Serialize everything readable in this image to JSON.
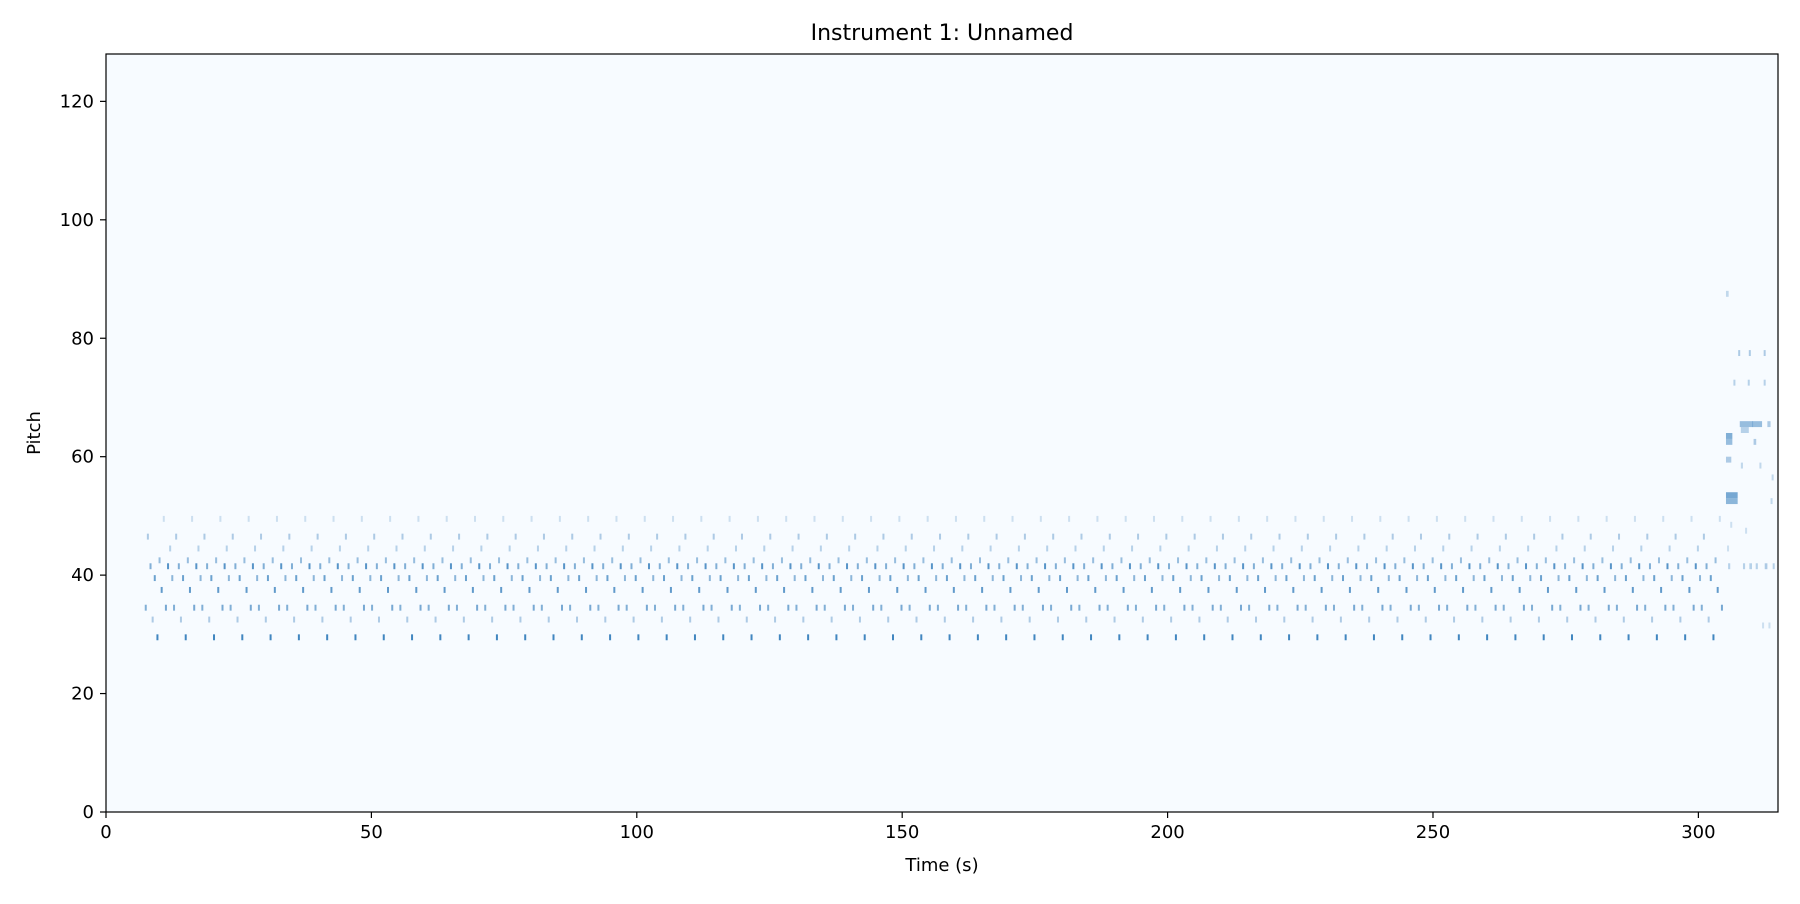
{
  "chart_data": {
    "type": "heatmap",
    "title": "Instrument 1: Unnamed",
    "xlabel": "Time (s)",
    "ylabel": "Pitch",
    "xlim": [
      0,
      315
    ],
    "ylim": [
      0,
      128
    ],
    "xticks": [
      0,
      50,
      100,
      150,
      200,
      250,
      300
    ],
    "yticks": [
      0,
      20,
      40,
      60,
      80,
      100,
      120
    ],
    "grid": false,
    "colormap": "Blues",
    "background_color": "#f7fbff",
    "note_color": "#2171b5",
    "loop_pattern": {
      "start_time": 7.3,
      "period": 5.33,
      "repetitions": 56,
      "note_duration": 0.25,
      "events": [
        {
          "offset": 0.0,
          "pitch": 34,
          "intensity": 0.55
        },
        {
          "offset": 0.4,
          "pitch": 46,
          "intensity": 0.35
        },
        {
          "offset": 0.9,
          "pitch": 41,
          "intensity": 0.55
        },
        {
          "offset": 1.3,
          "pitch": 32,
          "intensity": 0.35
        },
        {
          "offset": 1.7,
          "pitch": 39,
          "intensity": 0.65
        },
        {
          "offset": 2.2,
          "pitch": 29,
          "intensity": 0.85
        },
        {
          "offset": 2.6,
          "pitch": 42,
          "intensity": 0.45
        },
        {
          "offset": 3.0,
          "pitch": 37,
          "intensity": 0.7
        },
        {
          "offset": 3.4,
          "pitch": 49,
          "intensity": 0.2
        },
        {
          "offset": 3.8,
          "pitch": 34,
          "intensity": 0.6
        },
        {
          "offset": 4.2,
          "pitch": 41,
          "intensity": 0.75
        },
        {
          "offset": 4.6,
          "pitch": 44,
          "intensity": 0.3
        },
        {
          "offset": 5.0,
          "pitch": 39,
          "intensity": 0.5
        }
      ]
    },
    "ending_notes": [
      {
        "time": 305.2,
        "pitch": 87,
        "duration": 0.5,
        "intensity": 0.25
      },
      {
        "time": 305.2,
        "pitch": 63,
        "duration": 1.2,
        "intensity": 0.55
      },
      {
        "time": 305.2,
        "pitch": 62,
        "duration": 1.2,
        "intensity": 0.45
      },
      {
        "time": 305.2,
        "pitch": 59,
        "duration": 1.0,
        "intensity": 0.35
      },
      {
        "time": 305.2,
        "pitch": 53,
        "duration": 2.2,
        "intensity": 0.6
      },
      {
        "time": 305.2,
        "pitch": 52,
        "duration": 2.2,
        "intensity": 0.5
      },
      {
        "time": 305.6,
        "pitch": 41,
        "duration": 0.4,
        "intensity": 0.3
      },
      {
        "time": 305.4,
        "pitch": 44,
        "duration": 0.3,
        "intensity": 0.2
      },
      {
        "time": 306.0,
        "pitch": 48,
        "duration": 0.3,
        "intensity": 0.2
      },
      {
        "time": 306.6,
        "pitch": 72,
        "duration": 0.3,
        "intensity": 0.3
      },
      {
        "time": 307.5,
        "pitch": 77,
        "duration": 0.3,
        "intensity": 0.35
      },
      {
        "time": 307.8,
        "pitch": 65,
        "duration": 2.5,
        "intensity": 0.45
      },
      {
        "time": 308.0,
        "pitch": 64,
        "duration": 1.5,
        "intensity": 0.3
      },
      {
        "time": 308.0,
        "pitch": 58,
        "duration": 0.4,
        "intensity": 0.25
      },
      {
        "time": 308.4,
        "pitch": 41,
        "duration": 0.4,
        "intensity": 0.3
      },
      {
        "time": 308.8,
        "pitch": 47,
        "duration": 0.3,
        "intensity": 0.2
      },
      {
        "time": 309.3,
        "pitch": 72,
        "duration": 0.3,
        "intensity": 0.3
      },
      {
        "time": 309.5,
        "pitch": 77,
        "duration": 0.3,
        "intensity": 0.35
      },
      {
        "time": 309.6,
        "pitch": 41,
        "duration": 0.5,
        "intensity": 0.3
      },
      {
        "time": 310.2,
        "pitch": 65,
        "duration": 1.8,
        "intensity": 0.45
      },
      {
        "time": 310.4,
        "pitch": 62,
        "duration": 0.5,
        "intensity": 0.35
      },
      {
        "time": 310.8,
        "pitch": 41,
        "duration": 0.4,
        "intensity": 0.3
      },
      {
        "time": 311.5,
        "pitch": 58,
        "duration": 0.3,
        "intensity": 0.25
      },
      {
        "time": 312.0,
        "pitch": 31,
        "duration": 0.3,
        "intensity": 0.2
      },
      {
        "time": 312.3,
        "pitch": 77,
        "duration": 0.3,
        "intensity": 0.35
      },
      {
        "time": 312.3,
        "pitch": 72,
        "duration": 0.3,
        "intensity": 0.3
      },
      {
        "time": 312.5,
        "pitch": 41,
        "duration": 0.5,
        "intensity": 0.35
      },
      {
        "time": 313.0,
        "pitch": 65,
        "duration": 0.6,
        "intensity": 0.35
      },
      {
        "time": 313.2,
        "pitch": 31,
        "duration": 0.3,
        "intensity": 0.2
      },
      {
        "time": 313.6,
        "pitch": 52,
        "duration": 0.3,
        "intensity": 0.25
      },
      {
        "time": 313.8,
        "pitch": 56,
        "duration": 0.3,
        "intensity": 0.25
      },
      {
        "time": 314.0,
        "pitch": 41,
        "duration": 0.3,
        "intensity": 0.3
      }
    ]
  }
}
